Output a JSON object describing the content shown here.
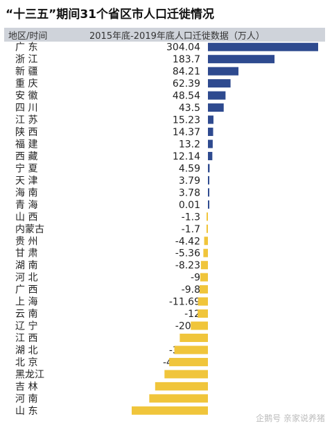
{
  "title": "“十三五”期间31个省区市人口迁徙情况",
  "header": {
    "region_label": "地区/时间",
    "data_label": "2015年底-2019年底人口迁徙数据（万人）"
  },
  "watermark": "企鹅号 亲家说养猪",
  "colors": {
    "positive": "#2e4a8f",
    "negative": "#f0c53b",
    "text": "#222222"
  },
  "chart_data": {
    "type": "bar",
    "orientation": "horizontal",
    "categories": [
      "广 东",
      "浙 江",
      "新 疆",
      "重 庆",
      "安 徽",
      "四 川",
      "江 苏",
      "陕 西",
      "福 建",
      "西 藏",
      "宁 夏",
      "天 津",
      "海 南",
      "青 海",
      "山 西",
      "内蒙古",
      "贵 州",
      "甘 肃",
      "湖 南",
      "河 北",
      "广 西",
      "上 海",
      "云 南",
      "辽 宁",
      "江 西",
      "湖 北",
      "北 京",
      "黑龙江",
      "吉 林",
      "河 南",
      "山 东"
    ],
    "values": [
      304.04,
      183.7,
      84.21,
      62.39,
      48.54,
      43.5,
      15.23,
      14.37,
      13.2,
      12.14,
      4.59,
      3.79,
      3.78,
      0.01,
      -1.3,
      -1.7,
      -4.42,
      -5.36,
      -8.23,
      -9,
      -9.8,
      -11.69,
      -12,
      -20.1,
      -33,
      -39.31,
      -45.421,
      -50.89,
      -61.85,
      -68.72,
      -89.31
    ],
    "value_labels": [
      "304.04",
      "183.7",
      "84.21",
      "62.39",
      "48.54",
      "43.5",
      "15.23",
      "14.37",
      "13.2",
      "12.14",
      "4.59",
      "3.79",
      "3.78",
      "0.01",
      "-1.3",
      "-1.7",
      "-4.42",
      "-5.36",
      "-8.23",
      "-9",
      "-9.8",
      "-11.69",
      "-12",
      "-20.1",
      "-33",
      "-39.31",
      "-45.421",
      "-50.89",
      "-61.85",
      "-68.72",
      "-89.31"
    ],
    "title": "“十三五”期间31个省区市人口迁徙情况",
    "ylabel": "2015年底-2019年底人口迁徙数据（万人）",
    "grid": false
  }
}
